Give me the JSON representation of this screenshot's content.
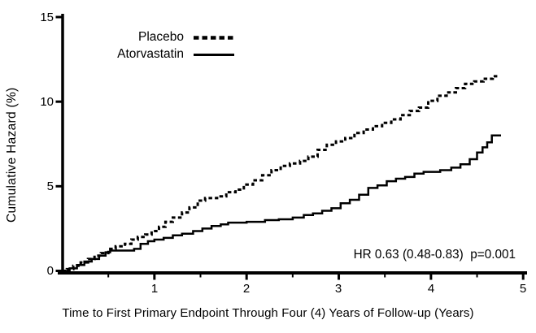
{
  "chart_data": {
    "type": "line",
    "subtype": "step-cumulative-hazard",
    "title": "",
    "xlabel": "Time to First Primary Endpoint Through Four (4) Years of Follow-up (Years)",
    "ylabel": "Cumulative Hazard (%)",
    "xlim": [
      0,
      5
    ],
    "ylim": [
      0,
      15
    ],
    "xticks_major": [
      1,
      2,
      3,
      4,
      5
    ],
    "xticks_minor": [
      0.5,
      1.5,
      2.5,
      3.5,
      4.5
    ],
    "yticks": [
      0,
      5,
      10,
      15
    ],
    "xtick_labels": [
      "1",
      "2",
      "3",
      "4",
      "5"
    ],
    "ytick_labels": [
      "0",
      "5",
      "10",
      "15"
    ],
    "grid": false,
    "legend_position": "top-center-inside",
    "annotation": "HR 0.63 (0.48-0.83)  p=0.001",
    "line_color": "#000000",
    "series": [
      {
        "name": "Placebo",
        "style": "dashed",
        "points": [
          [
            0,
            0
          ],
          [
            0.05,
            0.1
          ],
          [
            0.12,
            0.3
          ],
          [
            0.2,
            0.5
          ],
          [
            0.28,
            0.7
          ],
          [
            0.35,
            0.9
          ],
          [
            0.42,
            1.05
          ],
          [
            0.5,
            1.3
          ],
          [
            0.58,
            1.45
          ],
          [
            0.68,
            1.6
          ],
          [
            0.75,
            1.85
          ],
          [
            0.82,
            2.0
          ],
          [
            0.9,
            2.15
          ],
          [
            0.97,
            2.35
          ],
          [
            1.05,
            2.6
          ],
          [
            1.12,
            2.9
          ],
          [
            1.2,
            3.15
          ],
          [
            1.3,
            3.45
          ],
          [
            1.38,
            3.75
          ],
          [
            1.47,
            4.15
          ],
          [
            1.55,
            4.3
          ],
          [
            1.68,
            4.4
          ],
          [
            1.78,
            4.65
          ],
          [
            1.88,
            4.8
          ],
          [
            1.97,
            5.1
          ],
          [
            2.07,
            5.35
          ],
          [
            2.17,
            5.65
          ],
          [
            2.27,
            5.95
          ],
          [
            2.37,
            6.2
          ],
          [
            2.47,
            6.35
          ],
          [
            2.58,
            6.5
          ],
          [
            2.67,
            6.75
          ],
          [
            2.77,
            7.15
          ],
          [
            2.87,
            7.45
          ],
          [
            2.97,
            7.65
          ],
          [
            3.07,
            7.85
          ],
          [
            3.17,
            8.15
          ],
          [
            3.27,
            8.35
          ],
          [
            3.37,
            8.55
          ],
          [
            3.47,
            8.75
          ],
          [
            3.57,
            8.95
          ],
          [
            3.67,
            9.2
          ],
          [
            3.77,
            9.45
          ],
          [
            3.87,
            9.65
          ],
          [
            3.97,
            10.05
          ],
          [
            4.07,
            10.35
          ],
          [
            4.17,
            10.55
          ],
          [
            4.27,
            10.8
          ],
          [
            4.37,
            11.05
          ],
          [
            4.47,
            11.2
          ],
          [
            4.57,
            11.35
          ],
          [
            4.67,
            11.5
          ],
          [
            4.72,
            11.5
          ]
        ]
      },
      {
        "name": "Atorvastatin",
        "style": "solid",
        "points": [
          [
            0,
            0
          ],
          [
            0.08,
            0.15
          ],
          [
            0.16,
            0.35
          ],
          [
            0.24,
            0.55
          ],
          [
            0.32,
            0.7
          ],
          [
            0.4,
            0.9
          ],
          [
            0.47,
            1.1
          ],
          [
            0.52,
            1.2
          ],
          [
            0.78,
            1.3
          ],
          [
            0.85,
            1.6
          ],
          [
            0.93,
            1.75
          ],
          [
            1.0,
            1.85
          ],
          [
            1.1,
            1.95
          ],
          [
            1.2,
            2.1
          ],
          [
            1.3,
            2.2
          ],
          [
            1.42,
            2.35
          ],
          [
            1.52,
            2.5
          ],
          [
            1.62,
            2.65
          ],
          [
            1.72,
            2.75
          ],
          [
            1.8,
            2.85
          ],
          [
            2.0,
            2.9
          ],
          [
            2.2,
            3.0
          ],
          [
            2.35,
            3.05
          ],
          [
            2.5,
            3.15
          ],
          [
            2.62,
            3.3
          ],
          [
            2.72,
            3.4
          ],
          [
            2.82,
            3.55
          ],
          [
            2.92,
            3.7
          ],
          [
            3.02,
            4.0
          ],
          [
            3.12,
            4.2
          ],
          [
            3.22,
            4.5
          ],
          [
            3.32,
            4.9
          ],
          [
            3.42,
            5.05
          ],
          [
            3.52,
            5.3
          ],
          [
            3.62,
            5.45
          ],
          [
            3.72,
            5.55
          ],
          [
            3.82,
            5.75
          ],
          [
            3.92,
            5.85
          ],
          [
            4.1,
            5.95
          ],
          [
            4.22,
            6.1
          ],
          [
            4.32,
            6.3
          ],
          [
            4.42,
            6.6
          ],
          [
            4.5,
            7.0
          ],
          [
            4.56,
            7.3
          ],
          [
            4.61,
            7.6
          ],
          [
            4.66,
            8.0
          ],
          [
            4.76,
            8.0
          ]
        ]
      }
    ]
  }
}
